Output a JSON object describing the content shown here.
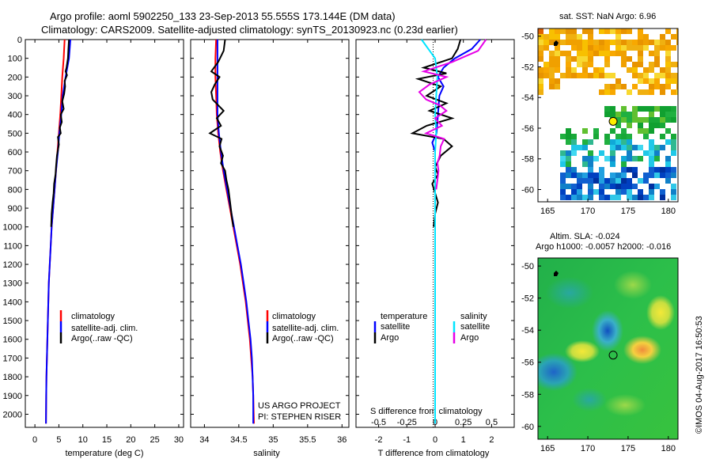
{
  "header": {
    "title_line1": "Argo profile: aoml 5902250_133 23-Sep-2013 55.555S 173.144E (DM data)",
    "title_line2": "Climatology: CARS2009. Satellite-adjusted climatology: synTS_20130923.nc (0.23d earlier)"
  },
  "maps": {
    "sst_title": "sat. SST: NaN Argo: 6.96",
    "sla_title": "Altim. SLA: -0.024",
    "sla_subtitle": "Argo h1000: -0.0057 h2000: -0.016",
    "lon_ticks": [
      "165",
      "170",
      "175",
      "180"
    ],
    "lat_ticks": [
      "-50",
      "-52",
      "-54",
      "-56",
      "-58",
      "-60"
    ],
    "argo_lon": 173.144,
    "argo_lat": -55.555
  },
  "credit": "©IMOS 04-Aug-2017 16:50:53",
  "colors": {
    "climatology": "#ff0000",
    "satellite": "#0000ff",
    "argo": "#000000",
    "salinity_satellite": "#00e5ff",
    "salinity_argo": "#e600e6"
  },
  "chart_data": [
    {
      "type": "line",
      "title": "temperature profile",
      "xlabel": "temperature (deg C)",
      "ylabel": "",
      "xlim": [
        -2,
        31
      ],
      "ylim": [
        2070,
        0
      ],
      "x_ticks": [
        "0",
        "5",
        "10",
        "15",
        "20",
        "25",
        "30"
      ],
      "y_ticks": [
        "0",
        "100",
        "200",
        "300",
        "400",
        "500",
        "600",
        "700",
        "800",
        "900",
        "1000",
        "1100",
        "1200",
        "1300",
        "1400",
        "1500",
        "1600",
        "1700",
        "1800",
        "1900",
        "2000"
      ],
      "legend": [
        "climatology",
        "satellite-adj. clim.",
        "Argo(..raw -QC)"
      ],
      "annotations": [],
      "series": [
        {
          "name": "climatology",
          "color": "#ff0000",
          "points": [
            [
              6.2,
              0
            ],
            [
              6.0,
              100
            ],
            [
              5.7,
              200
            ],
            [
              5.5,
              300
            ],
            [
              5.3,
              400
            ],
            [
              5.0,
              500
            ],
            [
              4.7,
              600
            ],
            [
              4.4,
              700
            ],
            [
              4.1,
              800
            ],
            [
              3.8,
              900
            ],
            [
              3.5,
              1000
            ],
            [
              3.3,
              1100
            ],
            [
              3.1,
              1200
            ],
            [
              2.9,
              1300
            ],
            [
              2.8,
              1400
            ],
            [
              2.7,
              1500
            ],
            [
              2.6,
              1600
            ],
            [
              2.5,
              1700
            ],
            [
              2.4,
              1800
            ],
            [
              2.35,
              1900
            ],
            [
              2.3,
              2050
            ]
          ]
        },
        {
          "name": "satellite-adj. clim.",
          "color": "#0000ff",
          "points": [
            [
              7.4,
              0
            ],
            [
              7.1,
              100
            ],
            [
              6.4,
              200
            ],
            [
              5.8,
              300
            ],
            [
              5.5,
              400
            ],
            [
              5.1,
              500
            ],
            [
              4.8,
              600
            ],
            [
              4.4,
              700
            ],
            [
              4.1,
              800
            ],
            [
              3.8,
              900
            ],
            [
              3.5,
              1000
            ],
            [
              3.3,
              1100
            ],
            [
              3.1,
              1200
            ],
            [
              2.9,
              1300
            ],
            [
              2.8,
              1400
            ],
            [
              2.7,
              1500
            ],
            [
              2.6,
              1600
            ],
            [
              2.5,
              1700
            ],
            [
              2.4,
              1800
            ],
            [
              2.35,
              1900
            ],
            [
              2.3,
              2050
            ]
          ]
        },
        {
          "name": "Argo(..raw -QC)",
          "color": "#000000",
          "points": [
            [
              7.1,
              0
            ],
            [
              7.0,
              50
            ],
            [
              6.9,
              100
            ],
            [
              6.6,
              150
            ],
            [
              6.4,
              170
            ],
            [
              6.7,
              190
            ],
            [
              6.2,
              220
            ],
            [
              6.3,
              250
            ],
            [
              6.1,
              290
            ],
            [
              5.7,
              330
            ],
            [
              6.0,
              370
            ],
            [
              5.4,
              400
            ],
            [
              5.6,
              440
            ],
            [
              5.2,
              470
            ],
            [
              5.4,
              500
            ],
            [
              4.8,
              520
            ],
            [
              5.0,
              560
            ],
            [
              4.6,
              620
            ],
            [
              4.4,
              680
            ],
            [
              4.3,
              720
            ],
            [
              4.0,
              770
            ],
            [
              3.9,
              820
            ],
            [
              3.7,
              870
            ],
            [
              3.5,
              930
            ],
            [
              3.4,
              1000
            ]
          ]
        }
      ]
    },
    {
      "type": "line",
      "title": "salinity profile",
      "xlabel": "salinity",
      "ylabel": "",
      "xlim": [
        33.8,
        36.1
      ],
      "ylim": [
        2070,
        0
      ],
      "x_ticks": [
        "34",
        "34.5",
        "35",
        "35.5",
        "36"
      ],
      "y_ticks": [],
      "legend": [
        "climatology",
        "satellite-adj. clim.",
        "Argo(..raw -QC)"
      ],
      "annotations": [
        "US ARGO PROJECT",
        "PI: STEPHEN RISER"
      ],
      "series": [
        {
          "name": "climatology",
          "color": "#ff0000",
          "points": [
            [
              34.17,
              0
            ],
            [
              34.16,
              100
            ],
            [
              34.16,
              200
            ],
            [
              34.17,
              300
            ],
            [
              34.18,
              400
            ],
            [
              34.2,
              500
            ],
            [
              34.23,
              600
            ],
            [
              34.27,
              700
            ],
            [
              34.32,
              800
            ],
            [
              34.37,
              900
            ],
            [
              34.42,
              1000
            ],
            [
              34.47,
              1100
            ],
            [
              34.52,
              1200
            ],
            [
              34.56,
              1300
            ],
            [
              34.6,
              1400
            ],
            [
              34.63,
              1500
            ],
            [
              34.66,
              1600
            ],
            [
              34.68,
              1700
            ],
            [
              34.7,
              1800
            ],
            [
              34.71,
              1900
            ],
            [
              34.72,
              2050
            ]
          ]
        },
        {
          "name": "satellite-adj. clim.",
          "color": "#0000ff",
          "points": [
            [
              34.19,
              0
            ],
            [
              34.19,
              100
            ],
            [
              34.19,
              200
            ],
            [
              34.19,
              300
            ],
            [
              34.19,
              400
            ],
            [
              34.21,
              500
            ],
            [
              34.24,
              600
            ],
            [
              34.28,
              700
            ],
            [
              34.33,
              800
            ],
            [
              34.38,
              900
            ],
            [
              34.43,
              1000
            ],
            [
              34.48,
              1100
            ],
            [
              34.53,
              1200
            ],
            [
              34.57,
              1300
            ],
            [
              34.61,
              1400
            ],
            [
              34.64,
              1500
            ],
            [
              34.67,
              1600
            ],
            [
              34.69,
              1700
            ],
            [
              34.7,
              1800
            ],
            [
              34.71,
              1900
            ],
            [
              34.71,
              2050
            ]
          ]
        },
        {
          "name": "Argo(..raw -QC)",
          "color": "#000000",
          "points": [
            [
              34.3,
              0
            ],
            [
              34.28,
              60
            ],
            [
              34.2,
              120
            ],
            [
              34.1,
              170
            ],
            [
              34.22,
              200
            ],
            [
              34.15,
              240
            ],
            [
              34.1,
              280
            ],
            [
              34.12,
              320
            ],
            [
              34.2,
              350
            ],
            [
              34.28,
              380
            ],
            [
              34.18,
              420
            ],
            [
              34.24,
              460
            ],
            [
              34.08,
              500
            ],
            [
              34.25,
              530
            ],
            [
              34.22,
              570
            ],
            [
              34.27,
              620
            ],
            [
              34.24,
              660
            ],
            [
              34.3,
              700
            ],
            [
              34.32,
              750
            ],
            [
              34.35,
              800
            ],
            [
              34.37,
              860
            ],
            [
              34.4,
              950
            ],
            [
              34.42,
              1000
            ]
          ]
        }
      ]
    },
    {
      "type": "line",
      "title": "difference from climatology",
      "xlabel": "T difference from climatology",
      "x2label": "S difference from climatology",
      "ylabel": "",
      "xlim": [
        -2.8,
        2.8
      ],
      "ylim": [
        2070,
        0
      ],
      "x_ticks": [
        "-2",
        "-1",
        "0",
        "1",
        "2"
      ],
      "x2_ticks": [
        "-0.5",
        "-0.25",
        "0",
        "0.25",
        "0.5"
      ],
      "y_ticks": [],
      "legend": [
        "temperature",
        "satellite",
        "Argo",
        "salinity",
        "satellite",
        "Argo"
      ],
      "annotations": [],
      "series": [
        {
          "name": "temperature satellite",
          "color": "#0000ff",
          "points": [
            [
              1.6,
              0
            ],
            [
              1.3,
              50
            ],
            [
              0.7,
              100
            ],
            [
              0.3,
              150
            ],
            [
              0.1,
              200
            ],
            [
              0.3,
              250
            ],
            [
              0.15,
              300
            ],
            [
              0.1,
              400
            ],
            [
              0.05,
              500
            ],
            [
              -0.1,
              550
            ],
            [
              0.0,
              600
            ],
            [
              0.0,
              700
            ],
            [
              0.0,
              800
            ],
            [
              0.0,
              1000
            ],
            [
              0.0,
              2050
            ]
          ]
        },
        {
          "name": "temperature Argo",
          "color": "#000000",
          "points": [
            [
              0.9,
              0
            ],
            [
              0.8,
              50
            ],
            [
              0.6,
              100
            ],
            [
              -0.4,
              150
            ],
            [
              0.4,
              180
            ],
            [
              -0.6,
              210
            ],
            [
              0.2,
              250
            ],
            [
              -0.3,
              300
            ],
            [
              0.4,
              340
            ],
            [
              -0.2,
              380
            ],
            [
              0.6,
              420
            ],
            [
              -0.3,
              460
            ],
            [
              -0.8,
              500
            ],
            [
              0.3,
              530
            ],
            [
              0.6,
              570
            ],
            [
              0.2,
              620
            ],
            [
              0.0,
              680
            ],
            [
              0.1,
              720
            ],
            [
              -0.1,
              770
            ],
            [
              0.0,
              820
            ],
            [
              0.1,
              870
            ],
            [
              0.0,
              930
            ],
            [
              -0.05,
              1000
            ]
          ]
        },
        {
          "name": "salinity satellite",
          "color": "#00e5ff",
          "points": [
            [
              -0.12,
              0
            ],
            [
              -0.06,
              50
            ],
            [
              0.0,
              100
            ],
            [
              0.02,
              200
            ],
            [
              0.01,
              300
            ],
            [
              0.0,
              400
            ],
            [
              0.01,
              500
            ],
            [
              0.0,
              600
            ],
            [
              0.0,
              700
            ],
            [
              0.0,
              800
            ],
            [
              0.0,
              1000
            ],
            [
              0.0,
              2050
            ]
          ]
        },
        {
          "name": "salinity Argo",
          "color": "#e600e6",
          "points": [
            [
              0.45,
              0
            ],
            [
              0.38,
              60
            ],
            [
              0.15,
              120
            ],
            [
              -0.1,
              170
            ],
            [
              0.1,
              200
            ],
            [
              -0.05,
              240
            ],
            [
              -0.14,
              280
            ],
            [
              -0.08,
              320
            ],
            [
              0.04,
              350
            ],
            [
              0.1,
              380
            ],
            [
              0.0,
              420
            ],
            [
              0.06,
              460
            ],
            [
              -0.08,
              500
            ],
            [
              0.08,
              530
            ],
            [
              0.05,
              570
            ],
            [
              0.04,
              620
            ],
            [
              0.02,
              660
            ],
            [
              0.03,
              700
            ],
            [
              0.02,
              750
            ],
            [
              0.01,
              800
            ]
          ]
        }
      ]
    }
  ]
}
